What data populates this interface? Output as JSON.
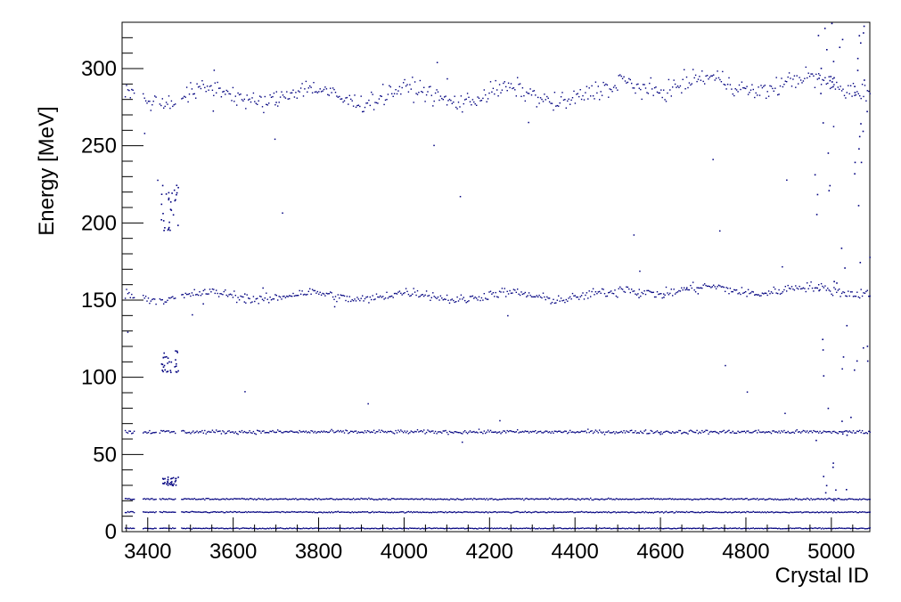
{
  "chart_data": {
    "type": "scatter",
    "xlabel": "Crystal ID",
    "ylabel": "Energy [MeV]",
    "xlim": [
      3340,
      5090
    ],
    "ylim": [
      0,
      330
    ],
    "x_ticks": [
      3400,
      3600,
      3800,
      4000,
      4200,
      4400,
      4600,
      4800,
      5000
    ],
    "y_ticks": [
      0,
      50,
      100,
      150,
      200,
      250,
      300
    ],
    "x_tick_labels": [
      "3400",
      "3600",
      "3800",
      "4000",
      "4200",
      "4400",
      "4600",
      "4800",
      "5000"
    ],
    "y_tick_labels": [
      "0",
      "50",
      "100",
      "150",
      "200",
      "250",
      "300"
    ],
    "grid": false,
    "legend": "none",
    "marker_color": "#00007f",
    "bands": [
      {
        "energy": 2.5,
        "spread": 0.3
      },
      {
        "energy": 13,
        "spread": 0.4
      },
      {
        "energy": 21.5,
        "spread": 0.5
      },
      {
        "energy": 65,
        "spread": 1.2
      },
      {
        "energy": 153,
        "spread": 3
      },
      {
        "energy": 283,
        "spread": 6
      }
    ],
    "band_gaps": [
      [
        3370,
        3385
      ],
      [
        3420,
        3425
      ],
      [
        3465,
        3475
      ]
    ],
    "outlier_groups": [
      {
        "x_range": [
          3430,
          3470
        ],
        "y_range": [
          195,
          225
        ]
      },
      {
        "x_range": [
          3430,
          3470
        ],
        "y_range": [
          103,
          118
        ]
      },
      {
        "x_range": [
          3430,
          3470
        ],
        "y_range": [
          30,
          36
        ]
      },
      {
        "x_range": [
          4960,
          5085
        ],
        "y_range": [
          20,
          330
        ]
      }
    ]
  }
}
